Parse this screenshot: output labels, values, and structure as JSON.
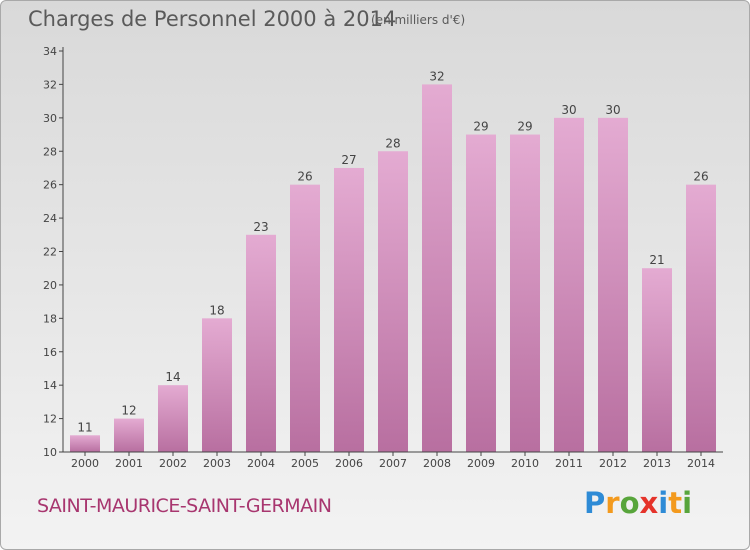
{
  "header": {
    "title": "Charges de Personnel 2000 à 2014",
    "subtitle": "(en milliers d'€)"
  },
  "footer": {
    "commune": "SAINT-MAURICE-SAINT-GERMAIN",
    "logo_letters": [
      "P",
      "r",
      "o",
      "x",
      "i",
      "t",
      "i"
    ],
    "logo_colors": [
      "#2e8bd6",
      "#f39a1e",
      "#58a53b",
      "#e5332a",
      "#2e8bd6",
      "#f39a1e",
      "#58a53b"
    ]
  },
  "colors": {
    "bar_top": "#e4abd2",
    "bar_bottom": "#b86fa0",
    "axis": "#444444",
    "text": "#444444"
  },
  "chart_data": {
    "type": "bar",
    "title": "Charges de Personnel 2000 à 2014",
    "subtitle": "(en milliers d'€)",
    "categories": [
      "2000",
      "2001",
      "2002",
      "2003",
      "2004",
      "2005",
      "2006",
      "2007",
      "2008",
      "2009",
      "2010",
      "2011",
      "2012",
      "2013",
      "2014"
    ],
    "values": [
      11,
      12,
      14,
      18,
      23,
      26,
      27,
      28,
      32,
      29,
      29,
      30,
      30,
      21,
      26
    ],
    "ylim": [
      10,
      34
    ],
    "yticks": [
      10,
      12,
      14,
      16,
      18,
      20,
      22,
      24,
      26,
      28,
      30,
      32,
      34
    ],
    "xlabel": "",
    "ylabel": "",
    "grid": false,
    "legend": "none"
  }
}
